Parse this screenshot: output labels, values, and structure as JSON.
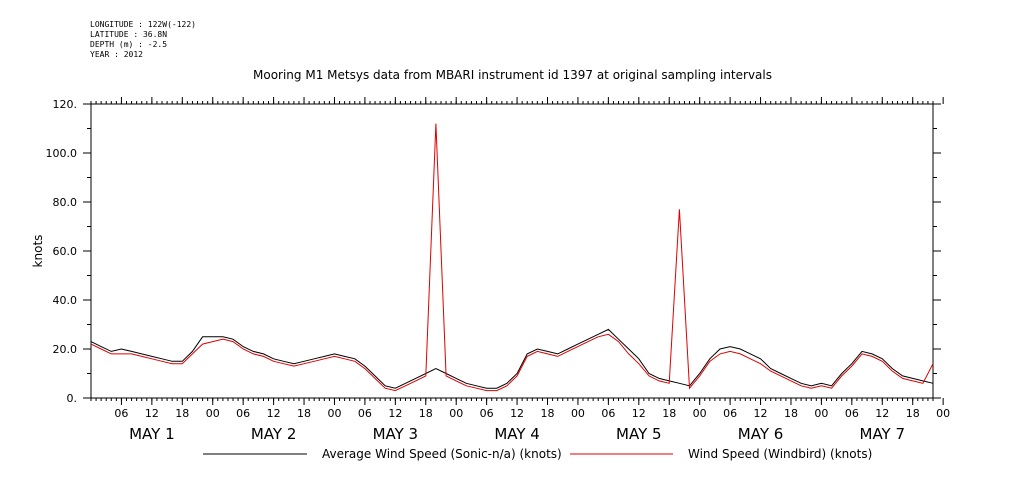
{
  "header": {
    "longitude": "LONGITUDE : 122W(-122)",
    "latitude": "LATITUDE : 36.8N",
    "depth": "DEPTH (m) : -2.5",
    "year": "YEAR : 2012"
  },
  "chart_data": {
    "type": "line",
    "title": "Mooring M1 Metsys data from MBARI instrument id 1397 at original sampling intervals",
    "ylabel": "knots",
    "xlabel": "",
    "ylim": [
      0,
      120
    ],
    "xlim_hours": [
      0,
      166
    ],
    "y_ticks": [
      0,
      20.0,
      40.0,
      60.0,
      80.0,
      100.0,
      120
    ],
    "y_tick_labels": [
      "0.",
      "20.0",
      "40.0",
      "60.0",
      "80.0",
      "100.0",
      "120."
    ],
    "hour_ticks": [
      "06",
      "12",
      "18",
      "00",
      "06",
      "12",
      "18",
      "00",
      "06",
      "12",
      "18",
      "00",
      "06",
      "12",
      "18",
      "00",
      "06",
      "12",
      "18",
      "00",
      "06",
      "12",
      "18",
      "00",
      "06",
      "12",
      "18",
      "00"
    ],
    "day_labels": [
      "MAY   1",
      "MAY   2",
      "MAY   3",
      "MAY   4",
      "MAY   5",
      "MAY   6",
      "MAY   7"
    ],
    "x_unit": "hours since 2012-05-01 00:00",
    "series": [
      {
        "name": "Average Wind Speed (Sonic-n/a) (knots)",
        "color": "#000000",
        "x": [
          0,
          2,
          4,
          6,
          8,
          10,
          12,
          14,
          16,
          18,
          20,
          22,
          24,
          26,
          28,
          30,
          32,
          34,
          36,
          38,
          40,
          42,
          44,
          46,
          48,
          50,
          52,
          54,
          56,
          58,
          60,
          62,
          64,
          66,
          68,
          70,
          72,
          74,
          76,
          78,
          80,
          82,
          84,
          86,
          88,
          90,
          92,
          94,
          96,
          98,
          100,
          102,
          104,
          106,
          108,
          110,
          112,
          114,
          116,
          118,
          120,
          122,
          124,
          126,
          128,
          130,
          132,
          134,
          136,
          138,
          140,
          142,
          144,
          146,
          148,
          150,
          152,
          154,
          156,
          158,
          160,
          162,
          164,
          166
        ],
        "values": [
          23,
          21,
          19,
          20,
          19,
          18,
          17,
          16,
          15,
          15,
          19,
          25,
          25,
          25,
          24,
          21,
          19,
          18,
          16,
          15,
          14,
          15,
          16,
          17,
          18,
          17,
          16,
          13,
          9,
          5,
          4,
          6,
          8,
          10,
          12,
          10,
          8,
          6,
          5,
          4,
          4,
          6,
          10,
          18,
          20,
          19,
          18,
          20,
          22,
          24,
          26,
          28,
          24,
          20,
          16,
          10,
          8,
          7,
          6,
          5,
          10,
          16,
          20,
          21,
          20,
          18,
          16,
          12,
          10,
          8,
          6,
          5,
          6,
          5,
          10,
          14,
          19,
          18,
          16,
          12,
          9,
          8,
          7,
          6
        ]
      },
      {
        "name": "Wind Speed (Windbird) (knots)",
        "color": "#e00000",
        "x": [
          0,
          2,
          4,
          6,
          8,
          10,
          12,
          14,
          16,
          18,
          20,
          22,
          24,
          26,
          28,
          30,
          32,
          34,
          36,
          38,
          40,
          42,
          44,
          46,
          48,
          50,
          52,
          54,
          56,
          58,
          60,
          62,
          64,
          66,
          68,
          70,
          72,
          74,
          76,
          78,
          80,
          82,
          84,
          86,
          88,
          90,
          92,
          94,
          96,
          98,
          100,
          102,
          104,
          106,
          108,
          110,
          112,
          114,
          116,
          118,
          120,
          122,
          124,
          126,
          128,
          130,
          132,
          134,
          136,
          138,
          140,
          142,
          144,
          146,
          148,
          150,
          152,
          154,
          156,
          158,
          160,
          162,
          164,
          166
        ],
        "values": [
          22,
          20,
          18,
          18,
          18,
          17,
          16,
          15,
          14,
          14,
          18,
          22,
          23,
          24,
          23,
          20,
          18,
          17,
          15,
          14,
          13,
          14,
          15,
          16,
          17,
          16,
          15,
          12,
          8,
          4,
          3,
          5,
          7,
          9,
          112,
          9,
          7,
          5,
          4,
          3,
          3,
          5,
          9,
          17,
          19,
          18,
          17,
          19,
          21,
          23,
          25,
          26,
          23,
          18,
          14,
          9,
          7,
          6,
          77,
          4,
          9,
          15,
          18,
          19,
          18,
          16,
          14,
          11,
          9,
          7,
          5,
          4,
          5,
          4,
          9,
          13,
          18,
          17,
          15,
          11,
          8,
          7,
          6,
          14
        ]
      }
    ],
    "legend_position": "bottom"
  }
}
